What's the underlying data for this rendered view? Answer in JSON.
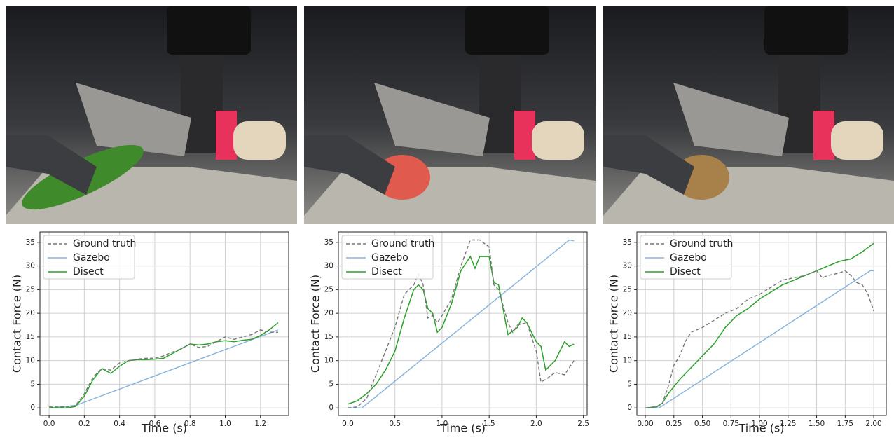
{
  "chart_data": [
    {
      "type": "line",
      "xlabel": "Time (s)",
      "ylabel": "Contact Force (N)",
      "xlim": [
        -0.052,
        1.36
      ],
      "ylim": [
        -1.6,
        37.2
      ],
      "xticks": [
        {
          "value": 0,
          "label": "0.0"
        },
        0.2,
        0.4,
        0.6,
        0.8,
        {
          "value": 1,
          "label": "1.0"
        },
        1.2
      ],
      "yticks": [
        0,
        5,
        10,
        15,
        20,
        25,
        30,
        35
      ],
      "grid": true,
      "legend": "upper-left",
      "series": [
        {
          "name": "Ground truth",
          "color": "#777777",
          "style": "dashed",
          "x": [
            0,
            0.1,
            0.15,
            0.2,
            0.25,
            0.3,
            0.35,
            0.4,
            0.45,
            0.5,
            0.55,
            0.6,
            0.65,
            0.7,
            0.75,
            0.8,
            0.85,
            0.9,
            0.95,
            1.0,
            1.05,
            1.1,
            1.15,
            1.2,
            1.25,
            1.3
          ],
          "values": [
            0.2,
            0.2,
            0.5,
            3,
            6.5,
            8.3,
            8,
            9.5,
            10,
            10.3,
            10.5,
            10.5,
            11,
            11.8,
            12.5,
            13.5,
            12.8,
            13,
            14,
            15,
            14.5,
            15,
            15.5,
            16.5,
            16,
            16
          ]
        },
        {
          "name": "Gazebo",
          "color": "#8ab4dc",
          "style": "solid",
          "x": [
            0,
            0.15,
            1.3
          ],
          "values": [
            0,
            0.5,
            16.5
          ]
        },
        {
          "name": "Disect",
          "color": "#2ca02c",
          "style": "solid",
          "x": [
            0,
            0.1,
            0.15,
            0.2,
            0.25,
            0.3,
            0.35,
            0.4,
            0.45,
            0.5,
            0.55,
            0.6,
            0.65,
            0.7,
            0.75,
            0.8,
            0.85,
            0.9,
            0.95,
            1.0,
            1.05,
            1.1,
            1.15,
            1.2,
            1.25,
            1.3
          ],
          "values": [
            0,
            0,
            0.3,
            2.5,
            6,
            8.3,
            7.3,
            8.8,
            10,
            10.2,
            10.2,
            10.3,
            10.5,
            11.5,
            12.5,
            13.5,
            13.3,
            13.5,
            14,
            14.2,
            14,
            14.3,
            14.5,
            15.3,
            16.5,
            18
          ]
        }
      ]
    },
    {
      "type": "line",
      "xlabel": "Time (s)",
      "ylabel": "Contact Force (N)",
      "xlim": [
        -0.1,
        2.54
      ],
      "ylim": [
        -1.6,
        37.2
      ],
      "xticks": [
        {
          "value": 0,
          "label": "0.0"
        },
        0.5,
        {
          "value": 1,
          "label": "1.0"
        },
        1.5,
        {
          "value": 2,
          "label": "2.0"
        },
        2.5
      ],
      "yticks": [
        0,
        5,
        10,
        15,
        20,
        25,
        30,
        35
      ],
      "grid": true,
      "legend": "upper-left",
      "series": [
        {
          "name": "Ground truth",
          "color": "#777777",
          "style": "dashed",
          "x": [
            0,
            0.1,
            0.2,
            0.3,
            0.4,
            0.5,
            0.6,
            0.7,
            0.75,
            0.8,
            0.85,
            0.9,
            0.95,
            1.0,
            1.1,
            1.2,
            1.3,
            1.4,
            1.5,
            1.55,
            1.6,
            1.7,
            1.75,
            1.8,
            1.9,
            2.0,
            2.05,
            2.1,
            2.2,
            2.3,
            2.4
          ],
          "values": [
            0,
            0.2,
            2,
            7,
            12,
            17,
            24,
            26,
            28.3,
            26,
            19,
            19.5,
            18,
            19.5,
            23,
            30,
            35.5,
            35.5,
            34,
            26,
            25,
            18,
            16,
            17.5,
            18,
            12,
            5.5,
            6,
            7.5,
            7,
            10
          ]
        },
        {
          "name": "Gazebo",
          "color": "#8ab4dc",
          "style": "solid",
          "x": [
            0,
            0.15,
            2.35,
            2.4
          ],
          "values": [
            0,
            0,
            35.5,
            35.3
          ]
        },
        {
          "name": "Disect",
          "color": "#2ca02c",
          "style": "solid",
          "x": [
            0,
            0.1,
            0.2,
            0.3,
            0.4,
            0.5,
            0.6,
            0.7,
            0.75,
            0.8,
            0.85,
            0.9,
            0.95,
            1.0,
            1.1,
            1.2,
            1.3,
            1.35,
            1.4,
            1.5,
            1.55,
            1.6,
            1.7,
            1.8,
            1.85,
            1.9,
            2.0,
            2.05,
            2.1,
            2.2,
            2.3,
            2.35,
            2.4
          ],
          "values": [
            0.8,
            1.5,
            3,
            5,
            8,
            12,
            19,
            25,
            26,
            25,
            21,
            20,
            16,
            17,
            22,
            29,
            32,
            29.5,
            32,
            32,
            26.5,
            26,
            15.5,
            17,
            19,
            18,
            14,
            13,
            8,
            10,
            14,
            13,
            13.5
          ]
        }
      ]
    },
    {
      "type": "line",
      "xlabel": "Time (s)",
      "ylabel": "Contact Force (N)",
      "xlim": [
        -0.074,
        2.11
      ],
      "ylim": [
        -1.6,
        37.2
      ],
      "xticks": [
        {
          "value": 0,
          "label": "0.00"
        },
        0.25,
        {
          "value": 0.5,
          "label": "0.50"
        },
        0.75,
        {
          "value": 1,
          "label": "1.00"
        },
        1.25,
        {
          "value": 1.5,
          "label": "1.50"
        },
        1.75,
        {
          "value": 2,
          "label": "2.00"
        }
      ],
      "yticks": [
        0,
        5,
        10,
        15,
        20,
        25,
        30,
        35
      ],
      "grid": true,
      "legend": "upper-left",
      "series": [
        {
          "name": "Ground truth",
          "color": "#777777",
          "style": "dashed",
          "x": [
            0,
            0.1,
            0.15,
            0.2,
            0.25,
            0.3,
            0.35,
            0.4,
            0.5,
            0.6,
            0.7,
            0.8,
            0.9,
            1.0,
            1.1,
            1.2,
            1.3,
            1.4,
            1.5,
            1.55,
            1.6,
            1.7,
            1.75,
            1.8,
            1.85,
            1.9,
            1.95,
            2.0
          ],
          "values": [
            0,
            0.3,
            1,
            4.5,
            9,
            11,
            14,
            16,
            17,
            18.5,
            20,
            21,
            23,
            24,
            25.5,
            27,
            27.5,
            28,
            29,
            27.5,
            28,
            28.5,
            29,
            28,
            26.5,
            26,
            24,
            20.5
          ]
        },
        {
          "name": "Gazebo",
          "color": "#8ab4dc",
          "style": "solid",
          "x": [
            0,
            0.12,
            1.97,
            2.0
          ],
          "values": [
            0,
            0,
            29,
            29
          ]
        },
        {
          "name": "Disect",
          "color": "#2ca02c",
          "style": "solid",
          "x": [
            0,
            0.1,
            0.15,
            0.2,
            0.3,
            0.4,
            0.5,
            0.6,
            0.7,
            0.8,
            0.9,
            1.0,
            1.1,
            1.2,
            1.3,
            1.4,
            1.5,
            1.6,
            1.7,
            1.8,
            1.9,
            2.0
          ],
          "values": [
            0,
            0.2,
            1,
            3,
            6,
            8.5,
            11,
            13.5,
            17,
            19.5,
            21,
            23,
            24.5,
            26,
            27,
            28,
            29,
            30,
            31,
            31.5,
            33,
            34.8
          ]
        }
      ]
    }
  ]
}
